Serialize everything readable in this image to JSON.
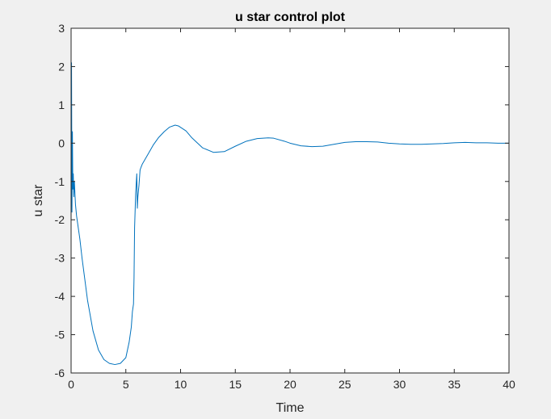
{
  "colors": {
    "figure_background": "#f0f0f0",
    "axes_background": "#ffffff",
    "axis_color": "#262626",
    "series_color": "#0072bd"
  },
  "chart_data": {
    "type": "line",
    "title": "u star control plot",
    "xlabel": "Time",
    "ylabel": "u star",
    "xlim": [
      0,
      40
    ],
    "ylim": [
      -6,
      3
    ],
    "x_ticks": [
      0,
      5,
      10,
      15,
      20,
      25,
      30,
      35,
      40
    ],
    "y_ticks": [
      -6,
      -5,
      -4,
      -3,
      -2,
      -1,
      0,
      1,
      2,
      3
    ],
    "x_tick_labels": [
      "0",
      "5",
      "10",
      "15",
      "20",
      "25",
      "30",
      "35",
      "40"
    ],
    "y_tick_labels": [
      "-6",
      "-5",
      "-4",
      "-3",
      "-2",
      "-1",
      "0",
      "1",
      "2",
      "3"
    ],
    "grid": false,
    "legend": "none",
    "series": [
      {
        "x": [
          0,
          0.04,
          0.08,
          0.12,
          0.16,
          0.2,
          0.25,
          0.3,
          0.35,
          0.4,
          0.5,
          0.6,
          0.8,
          1.0,
          1.5,
          2.0,
          2.5,
          3.0,
          3.5,
          4.0,
          4.5,
          5.0,
          5.3,
          5.5,
          5.6,
          5.7,
          5.75,
          5.8,
          5.9,
          6.0,
          6.05,
          6.1,
          6.15,
          6.2,
          6.3,
          6.4,
          6.5,
          7.0,
          7.5,
          8.0,
          8.5,
          9.0,
          9.5,
          9.8,
          10.5,
          11.0,
          12.0,
          13.0,
          14.0,
          15.0,
          16.0,
          17.0,
          18.0,
          18.5,
          19.5,
          20.0,
          21.0,
          22.0,
          23.0,
          24.0,
          25.0,
          26.0,
          27.0,
          28.0,
          29.0,
          30.0,
          31.0,
          32.0,
          33.0,
          34.0,
          35.0,
          36.0,
          37.0,
          38.0,
          39.0,
          40.0
        ],
        "y": [
          -2.0,
          2.1,
          -1.8,
          0.3,
          -1.2,
          -0.8,
          -1.4,
          -1.0,
          -1.3,
          -1.6,
          -1.9,
          -2.1,
          -2.5,
          -3.0,
          -4.1,
          -4.9,
          -5.4,
          -5.65,
          -5.75,
          -5.78,
          -5.75,
          -5.6,
          -5.2,
          -4.8,
          -4.4,
          -4.2,
          -3.5,
          -2.2,
          -1.3,
          -0.8,
          -1.7,
          -1.4,
          -1.25,
          -1.1,
          -0.7,
          -0.62,
          -0.55,
          -0.3,
          -0.05,
          0.15,
          0.3,
          0.42,
          0.47,
          0.45,
          0.32,
          0.15,
          -0.12,
          -0.24,
          -0.22,
          -0.08,
          0.05,
          0.12,
          0.14,
          0.13,
          0.05,
          0.0,
          -0.07,
          -0.09,
          -0.08,
          -0.03,
          0.02,
          0.04,
          0.04,
          0.03,
          0.0,
          -0.02,
          -0.03,
          -0.03,
          -0.02,
          -0.01,
          0.01,
          0.02,
          0.01,
          0.01,
          0.0,
          0.0
        ]
      }
    ]
  }
}
